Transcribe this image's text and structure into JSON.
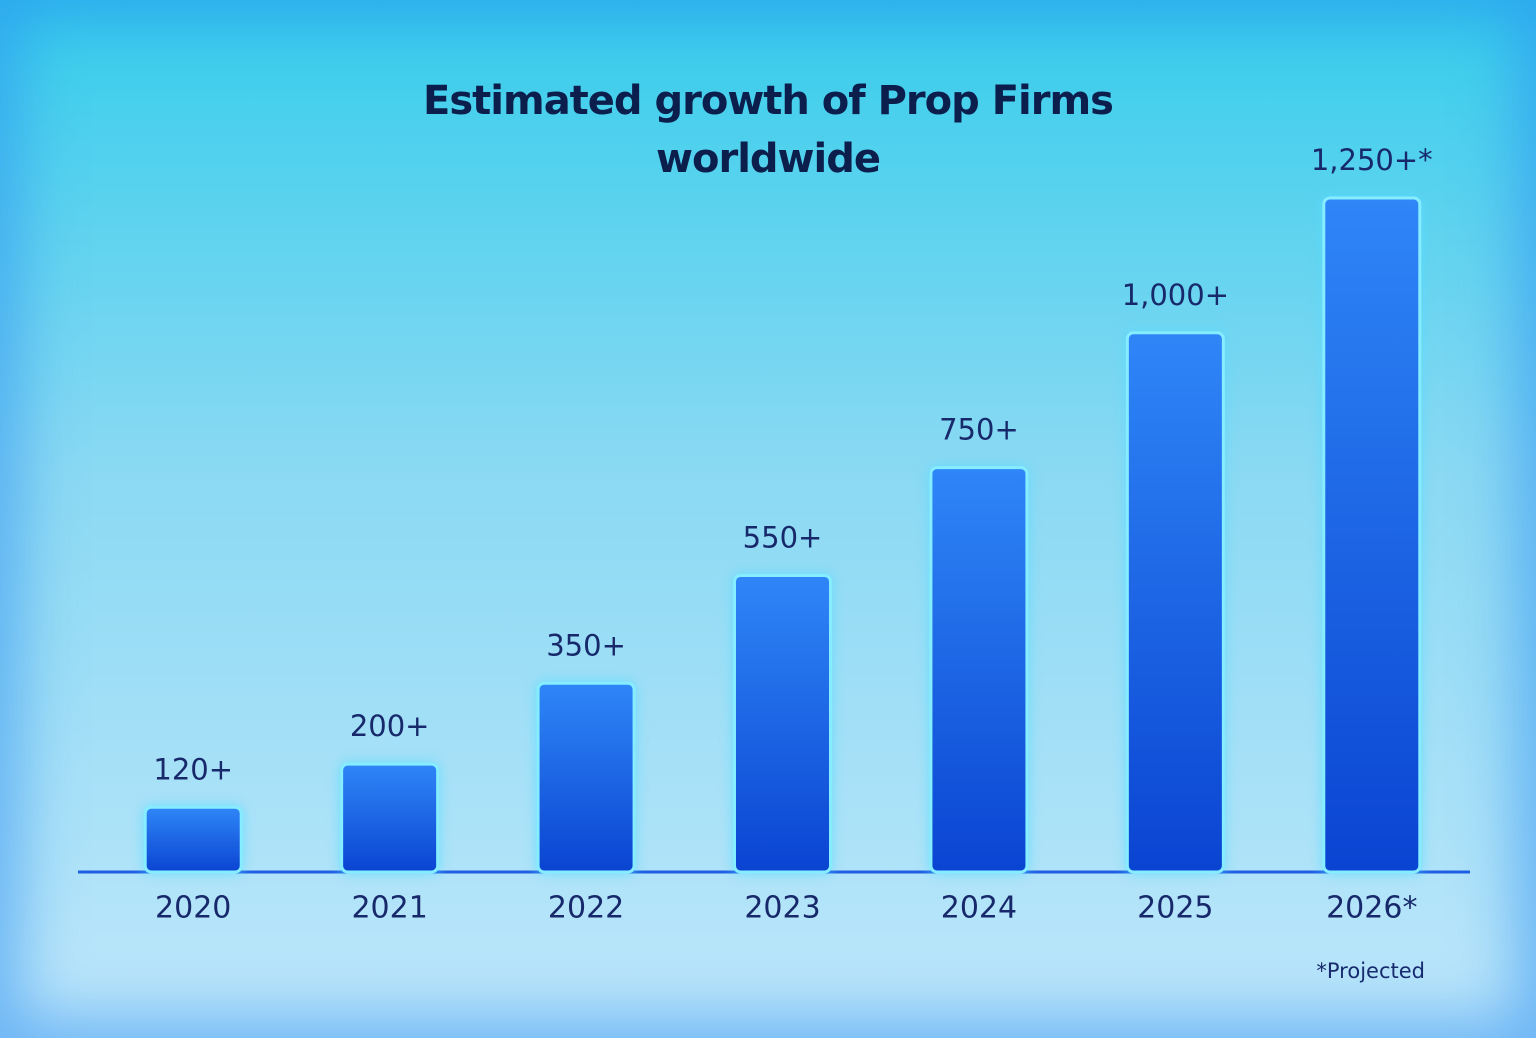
{
  "chart_data": {
    "type": "bar",
    "title": "Estimated growth of Prop Firms worldwide",
    "categories": [
      "2020",
      "2021",
      "2022",
      "2023",
      "2024",
      "2025",
      "2026*"
    ],
    "values": [
      120,
      200,
      350,
      550,
      750,
      1000,
      1250
    ],
    "value_labels": [
      "120+",
      "200+",
      "350+",
      "550+",
      "750+",
      "1,000+",
      "1,250+*"
    ],
    "color": "#1a5fe8",
    "ylim": [
      0,
      1250
    ],
    "note": "*Projected"
  }
}
